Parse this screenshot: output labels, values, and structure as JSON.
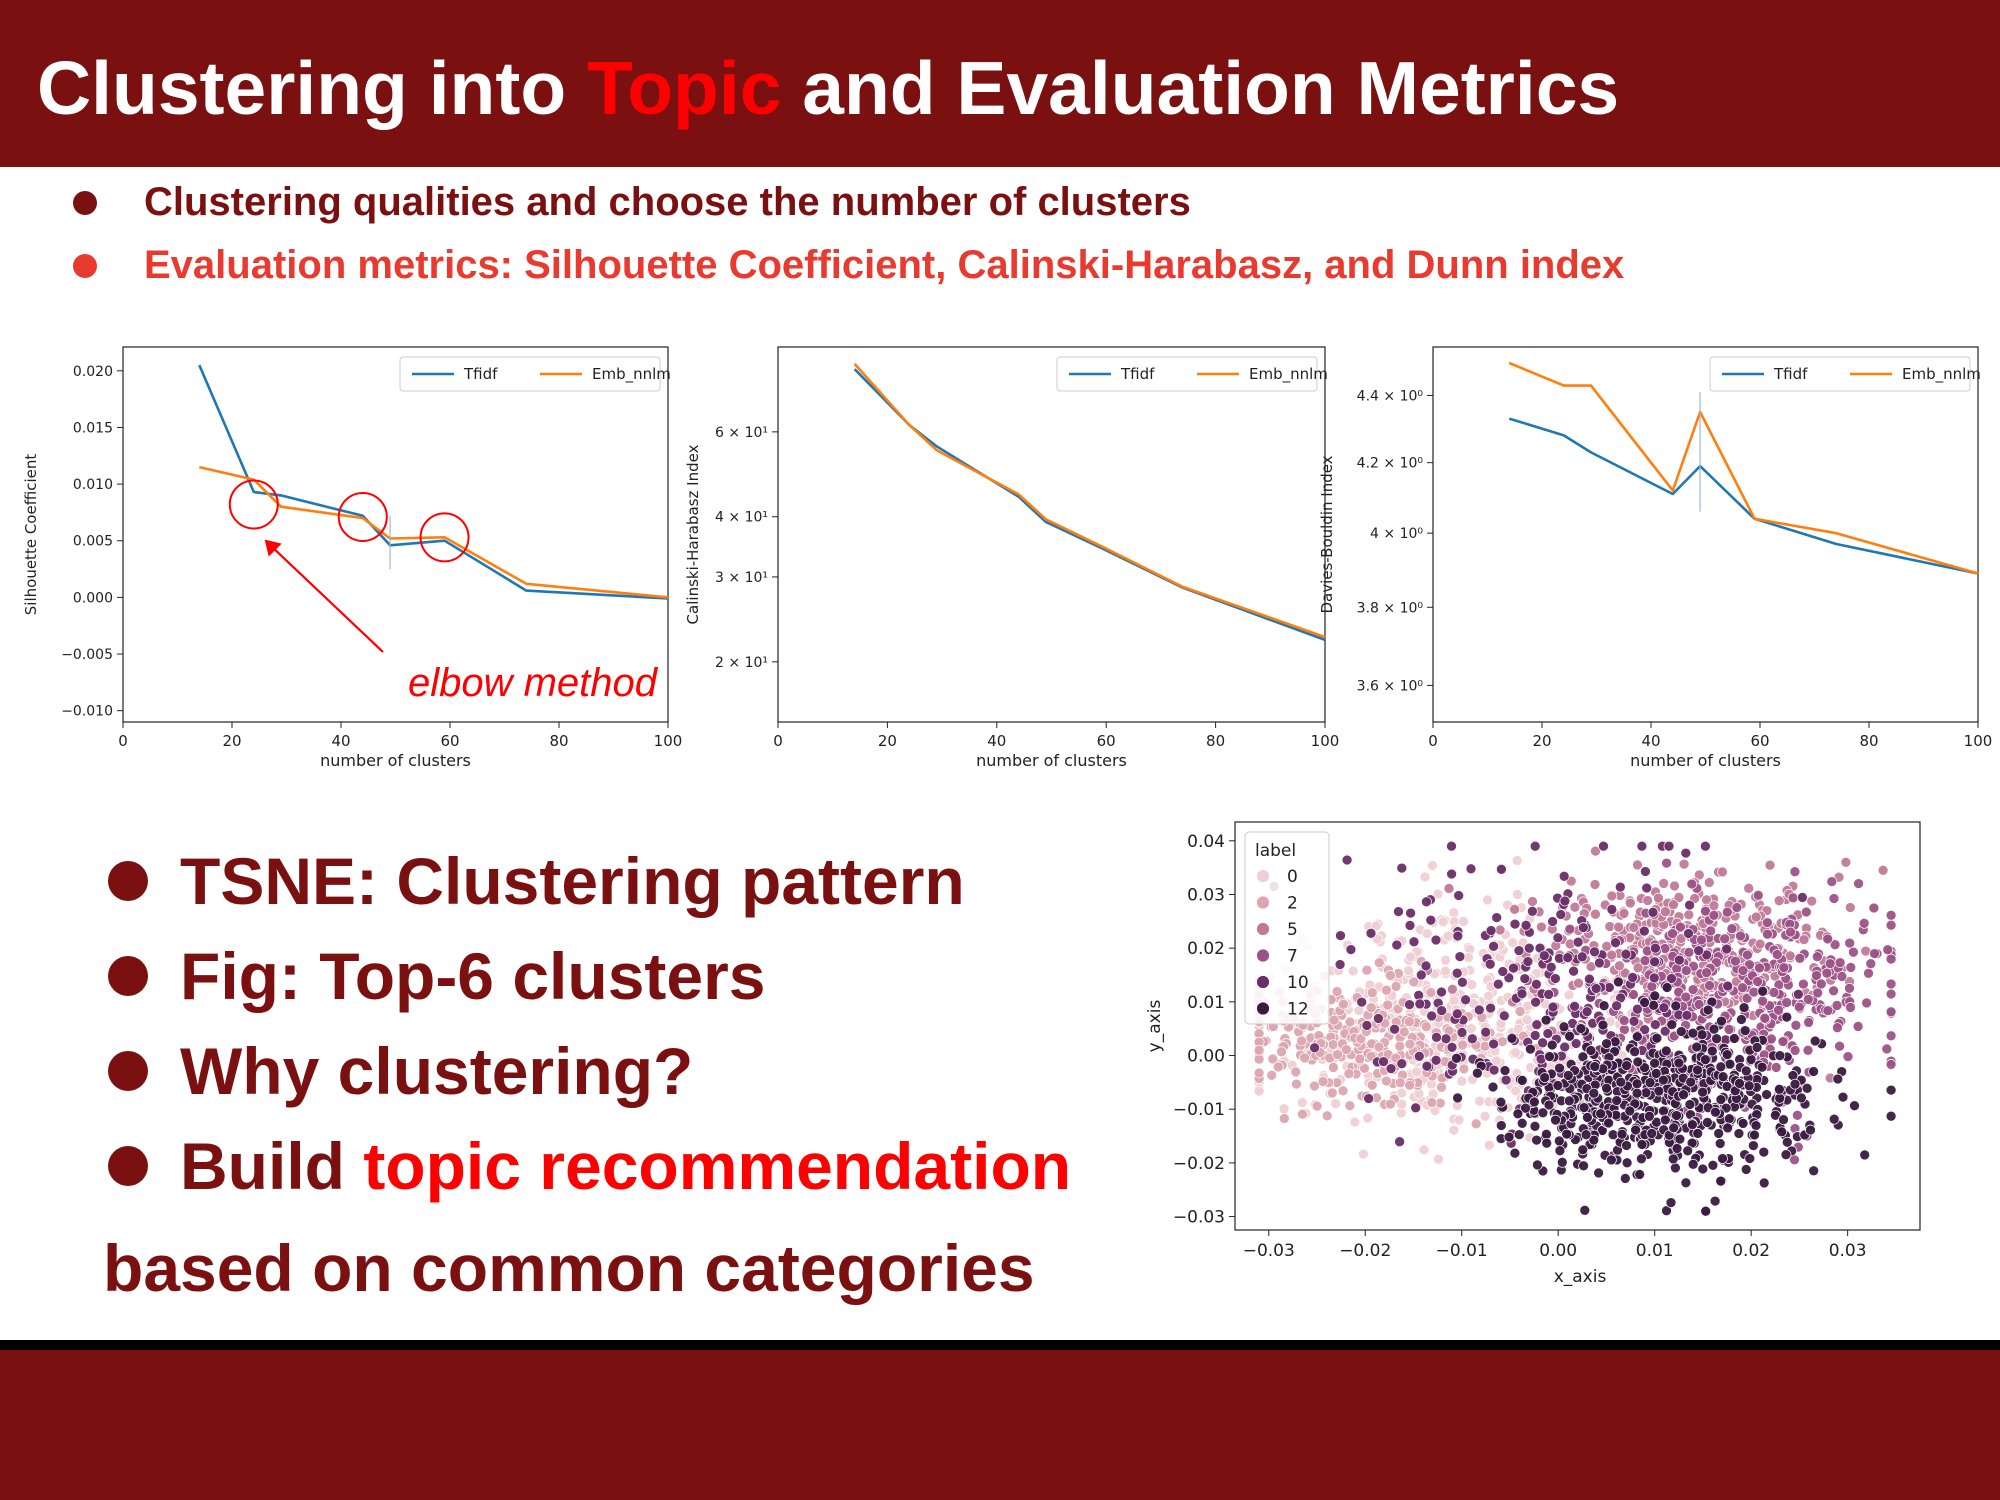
{
  "slide": {
    "title_part1": "Clustering into ",
    "title_highlight": "Topic",
    "title_part2": " and Evaluation Metrics",
    "bullets_top": [
      "Clustering qualities and choose the number of clusters",
      "Evaluation metrics: Silhouette Coefficient, Calinski-Harabasz, and Dunn index"
    ],
    "bullets_big": [
      "TSNE: Clustering pattern",
      "Fig: Top-6 clusters",
      "Why clustering?"
    ],
    "bullet4_plain": "Build ",
    "bullet4_highlight": "topic recommendation",
    "bullet4_tail": "based on common categories"
  },
  "colors": {
    "brand": "#7b1010",
    "highlight": "#ff0000",
    "bullet_red": "#e83a2e",
    "tfidf": "#1f77b4",
    "emb": "#ff7f0e",
    "annotation": "#ff0000"
  },
  "chart_data": [
    {
      "type": "line",
      "xlabel": "number of clusters",
      "ylabel": "Silhouette Coefficient",
      "xlim": [
        0,
        100
      ],
      "ylim": [
        -0.011,
        0.0221
      ],
      "xticks": [
        "0",
        "20",
        "40",
        "60",
        "80",
        "100"
      ],
      "yticks": [
        "0.020",
        "0.015",
        "0.010",
        "0.005",
        "0.000",
        "−0.005",
        "−0.010"
      ],
      "legend": "top-right",
      "series": [
        {
          "name": "Tfidf",
          "x": [
            14,
            24,
            29,
            44,
            49,
            59,
            74,
            100
          ],
          "y": [
            0.0205,
            0.0093,
            0.009,
            0.0072,
            0.0046,
            0.005,
            0.0006,
            -0.0001
          ]
        },
        {
          "name": "Emb_nnlm",
          "x": [
            14,
            24,
            29,
            44,
            49,
            59,
            74,
            100
          ],
          "y": [
            0.0115,
            0.0104,
            0.008,
            0.007,
            0.0052,
            0.0053,
            0.0012,
            0.0
          ]
        }
      ],
      "annotation": "elbow method"
    },
    {
      "type": "line",
      "xlabel": "number of clusters",
      "ylabel": "Calinski-Harabasz Index",
      "xlim": [
        0,
        100
      ],
      "ylim": [
        15,
        90
      ],
      "yscale": "log",
      "xticks": [
        "0",
        "20",
        "40",
        "60",
        "80",
        "100"
      ],
      "yticks": [
        "6 × 10¹",
        "4 × 10¹",
        "3 × 10¹",
        "2 × 10¹"
      ],
      "legend": "top-right",
      "series": [
        {
          "name": "Tfidf",
          "x": [
            14,
            24,
            29,
            44,
            49,
            59,
            74,
            100
          ],
          "y": [
            81,
            62,
            56,
            44,
            39,
            34.5,
            28.5,
            22.2
          ]
        },
        {
          "name": "Emb_nnlm",
          "x": [
            14,
            24,
            29,
            44,
            49,
            59,
            74,
            100
          ],
          "y": [
            83,
            62,
            55,
            44.5,
            39.5,
            34.8,
            28.6,
            22.5
          ]
        }
      ]
    },
    {
      "type": "line",
      "xlabel": "number of clusters",
      "ylabel": "Davies-Bouldin Index",
      "xlim": [
        0,
        100
      ],
      "ylim": [
        3.51,
        4.55
      ],
      "yscale": "log",
      "xticks": [
        "0",
        "20",
        "40",
        "60",
        "80",
        "100"
      ],
      "yticks": [
        "4.4 × 10⁰",
        "4.2 × 10⁰",
        "4 × 10⁰",
        "3.8 × 10⁰",
        "3.6 × 10⁰"
      ],
      "legend": "top-right",
      "series": [
        {
          "name": "Tfidf",
          "x": [
            14,
            24,
            29,
            44,
            49,
            59,
            74,
            100
          ],
          "y": [
            4.33,
            4.28,
            4.23,
            4.11,
            4.19,
            4.04,
            3.97,
            3.89
          ]
        },
        {
          "name": "Emb_nnlm",
          "x": [
            14,
            24,
            29,
            44,
            49,
            59,
            74,
            100
          ],
          "y": [
            4.5,
            4.43,
            4.43,
            4.12,
            4.35,
            4.04,
            4.0,
            3.89
          ]
        }
      ]
    },
    {
      "type": "scatter",
      "xlabel": "x_axis",
      "ylabel": "y_axis",
      "xlim": [
        -0.0335,
        0.0375
      ],
      "ylim": [
        -0.0325,
        0.0435
      ],
      "xticks": [
        "−0.03",
        "−0.02",
        "−0.01",
        "0.00",
        "0.01",
        "0.02",
        "0.03"
      ],
      "yticks": [
        "0.04",
        "0.03",
        "0.02",
        "0.01",
        "0.00",
        "−0.01",
        "−0.02",
        "−0.03"
      ],
      "legend_title": "label",
      "legend_entries": [
        "0",
        "2",
        "5",
        "7",
        "10",
        "12"
      ],
      "legend_colors": [
        "#efcfd4",
        "#dca5b0",
        "#c07a98",
        "#9c5287",
        "#6a2e68",
        "#3a1a40"
      ],
      "legend": "top-left",
      "clusters": [
        {
          "label": 0,
          "color": "#efcfd4",
          "cx": -0.012,
          "cy": 0.006,
          "sx": 0.009,
          "sy": 0.01,
          "n": 420
        },
        {
          "label": 2,
          "color": "#dca5b0",
          "cx": -0.02,
          "cy": 0.002,
          "sx": 0.007,
          "sy": 0.006,
          "n": 300
        },
        {
          "label": 5,
          "color": "#c07a98",
          "cx": 0.012,
          "cy": 0.02,
          "sx": 0.008,
          "sy": 0.008,
          "n": 380
        },
        {
          "label": 7,
          "color": "#9c5287",
          "cx": 0.02,
          "cy": 0.012,
          "sx": 0.008,
          "sy": 0.009,
          "n": 380
        },
        {
          "label": 10,
          "color": "#6a2e68",
          "cx": -0.002,
          "cy": 0.012,
          "sx": 0.01,
          "sy": 0.012,
          "n": 260
        },
        {
          "label": 12,
          "color": "#3a1a40",
          "cx": 0.01,
          "cy": -0.008,
          "sx": 0.008,
          "sy": 0.007,
          "n": 620
        }
      ]
    }
  ]
}
